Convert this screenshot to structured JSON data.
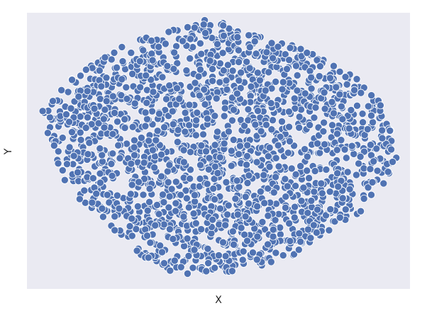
{
  "chart_data": {
    "type": "scatter",
    "title": "",
    "xlabel": "X",
    "ylabel": "Y",
    "grid": false,
    "legend": "none",
    "xlim": [
      0,
      1
    ],
    "ylim": [
      0,
      1
    ],
    "point_count": 2000,
    "sample_seed": 7,
    "region_outline_x": [
      0.04,
      0.1,
      0.18,
      0.26,
      0.36,
      0.48,
      0.58,
      0.68,
      0.78,
      0.86,
      0.93,
      0.97,
      0.94,
      0.88,
      0.8,
      0.7,
      0.58,
      0.46,
      0.38,
      0.3,
      0.22,
      0.14,
      0.08,
      0.04
    ],
    "region_outline_y": [
      0.64,
      0.74,
      0.83,
      0.89,
      0.93,
      0.98,
      0.93,
      0.89,
      0.83,
      0.77,
      0.67,
      0.49,
      0.39,
      0.29,
      0.2,
      0.12,
      0.07,
      0.05,
      0.06,
      0.12,
      0.22,
      0.32,
      0.42,
      0.64
    ],
    "outliers": [
      {
        "x": 0.041,
        "y": 0.644
      },
      {
        "x": 0.082,
        "y": 0.498
      },
      {
        "x": 0.951,
        "y": 0.505
      }
    ],
    "colors": {
      "point_fill": "#5073b3",
      "point_edge": "#ffffff",
      "plot_background": "#eaeaf2",
      "figure_background": "#ffffff"
    }
  }
}
